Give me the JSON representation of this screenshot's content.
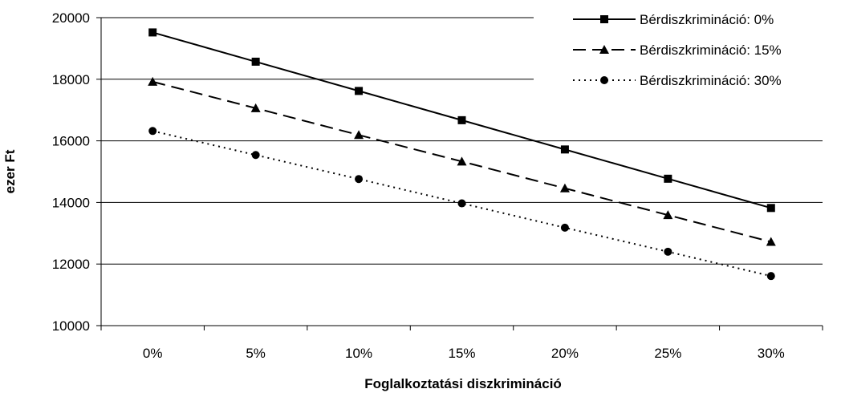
{
  "chart_data": {
    "type": "line",
    "categories": [
      "0%",
      "5%",
      "10%",
      "15%",
      "20%",
      "25%",
      "30%"
    ],
    "series": [
      {
        "name": "Bérdiszkrimináció: 0%",
        "marker": "square",
        "dash": "solid",
        "values": [
          19520,
          18570,
          17620,
          16670,
          15720,
          14770,
          13820
        ]
      },
      {
        "name": "Bérdiszkrimináció: 15%",
        "marker": "triangle",
        "dash": "dashed",
        "values": [
          17920,
          17060,
          16190,
          15330,
          14460,
          13590,
          12720
        ]
      },
      {
        "name": "Bérdiszkrimináció: 30%",
        "marker": "circle",
        "dash": "dotted",
        "values": [
          16320,
          15540,
          14760,
          13970,
          13180,
          12400,
          11610
        ]
      }
    ],
    "xlabel": "Foglalkoztatási diszkrimináció",
    "ylabel": "ezer Ft",
    "ylim": [
      10000,
      20000
    ],
    "yticks": [
      10000,
      12000,
      14000,
      16000,
      18000,
      20000
    ],
    "grid": "horizontal",
    "legend": "top-right",
    "colors": {
      "line": "#000000",
      "grid": "#000000",
      "background": "#ffffff"
    }
  }
}
